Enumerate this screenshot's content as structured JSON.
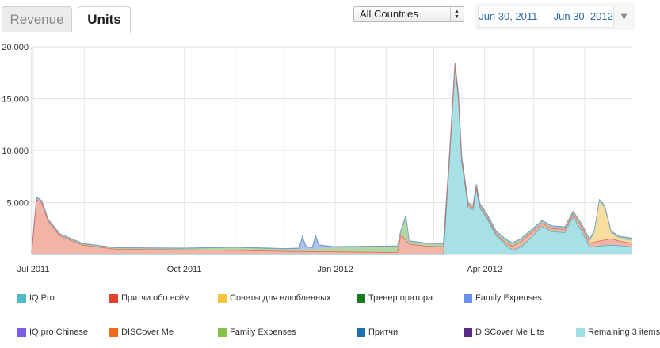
{
  "tabs": [
    {
      "label": "Revenue",
      "active": false
    },
    {
      "label": "Units",
      "active": true
    }
  ],
  "country_select": {
    "value": "All Countries"
  },
  "date_range": {
    "label": "Jun 30, 2011 — Jun 30, 2012"
  },
  "chart_data": {
    "type": "area",
    "stacked": true,
    "ylim": [
      0,
      20000
    ],
    "y_ticks": [
      {
        "value": 5000,
        "label": "5,000"
      },
      {
        "value": 10000,
        "label": "10,000"
      },
      {
        "value": 15000,
        "label": "15,000"
      },
      {
        "value": 20000,
        "label": "20,000"
      }
    ],
    "x_start": "2011-06-30",
    "x_end": "2012-06-30",
    "x_ticks": [
      {
        "date": "2011-07-01",
        "label": "Jul 2011"
      },
      {
        "date": "2011-10-01",
        "label": "Oct 2011"
      },
      {
        "date": "2012-01-01",
        "label": "Jan 2012"
      },
      {
        "date": "2012-04-01",
        "label": "Apr 2012"
      }
    ],
    "gridlines": true,
    "series": [
      {
        "name": "IQ Pro",
        "color": "#4bbcc8"
      },
      {
        "name": "Притчи обо всём",
        "color": "#e2412f"
      },
      {
        "name": "Советы для влюбленных",
        "color": "#f7c53b"
      },
      {
        "name": "Тренер оратора",
        "color": "#187a1b"
      },
      {
        "name": "Family Expenses",
        "color": "#6a8ef0"
      },
      {
        "name": "IQ pro Chinese",
        "color": "#7b5ce6"
      },
      {
        "name": "DISCover Me",
        "color": "#f26a1b"
      },
      {
        "name": "Family Expenses",
        "color": "#86c24a"
      },
      {
        "name": "Притчи",
        "color": "#1f6fb2"
      },
      {
        "name": "DISCover Me Lite",
        "color": "#5a2a8a"
      },
      {
        "name": "Remaining 3 items",
        "color": "#9ee0e8"
      }
    ],
    "stack_layers": [
      {
        "name": "Remaining 3 items",
        "fill": "#a7e1e6",
        "points": [
          [
            "2011-06-30",
            0
          ],
          [
            "2012-03-07",
            0
          ],
          [
            "2012-03-11",
            10000
          ],
          [
            "2012-03-14",
            18000
          ],
          [
            "2012-03-16",
            15000
          ],
          [
            "2012-03-18",
            9000
          ],
          [
            "2012-03-22",
            4500
          ],
          [
            "2012-03-25",
            4300
          ],
          [
            "2012-03-27",
            6300
          ],
          [
            "2012-03-29",
            4500
          ],
          [
            "2012-04-03",
            3300
          ],
          [
            "2012-04-08",
            1800
          ],
          [
            "2012-04-14",
            900
          ],
          [
            "2012-04-18",
            400
          ],
          [
            "2012-04-23",
            700
          ],
          [
            "2012-04-28",
            1400
          ],
          [
            "2012-05-06",
            2700
          ],
          [
            "2012-05-12",
            2200
          ],
          [
            "2012-05-20",
            2100
          ],
          [
            "2012-05-25",
            3600
          ],
          [
            "2012-05-30",
            2300
          ],
          [
            "2012-06-04",
            700
          ],
          [
            "2012-06-10",
            800
          ],
          [
            "2012-06-17",
            900
          ],
          [
            "2012-06-25",
            800
          ],
          [
            "2012-06-30",
            700
          ]
        ]
      },
      {
        "name": "Притчи обо всём",
        "fill": "#f3b4a8",
        "points": [
          [
            "2011-06-30",
            100
          ],
          [
            "2011-07-03",
            5300
          ],
          [
            "2011-07-06",
            5000
          ],
          [
            "2011-07-10",
            3200
          ],
          [
            "2011-07-17",
            1800
          ],
          [
            "2011-07-31",
            900
          ],
          [
            "2011-08-20",
            500
          ],
          [
            "2011-10-01",
            450
          ],
          [
            "2011-11-01",
            400
          ],
          [
            "2011-12-01",
            300
          ],
          [
            "2011-12-31",
            250
          ],
          [
            "2012-01-31",
            200
          ],
          [
            "2012-02-08",
            200
          ],
          [
            "2012-02-10",
            1900
          ],
          [
            "2012-02-15",
            1000
          ],
          [
            "2012-02-25",
            800
          ],
          [
            "2012-03-07",
            750
          ],
          [
            "2012-03-11",
            10200
          ],
          [
            "2012-03-14",
            18150
          ],
          [
            "2012-03-16",
            15200
          ],
          [
            "2012-03-18",
            9200
          ],
          [
            "2012-03-22",
            4700
          ],
          [
            "2012-03-25",
            4500
          ],
          [
            "2012-03-27",
            6500
          ],
          [
            "2012-03-29",
            4700
          ],
          [
            "2012-04-03",
            3500
          ],
          [
            "2012-04-08",
            2000
          ],
          [
            "2012-04-14",
            1100
          ],
          [
            "2012-04-18",
            800
          ],
          [
            "2012-04-23",
            1200
          ],
          [
            "2012-04-28",
            1900
          ],
          [
            "2012-05-06",
            3000
          ],
          [
            "2012-05-12",
            2500
          ],
          [
            "2012-05-20",
            2400
          ],
          [
            "2012-05-25",
            3900
          ],
          [
            "2012-05-30",
            2700
          ],
          [
            "2012-06-04",
            1100
          ],
          [
            "2012-06-10",
            1300
          ],
          [
            "2012-06-17",
            1500
          ],
          [
            "2012-06-25",
            1200
          ],
          [
            "2012-06-30",
            1100
          ]
        ]
      },
      {
        "name": "Советы для влюбленных",
        "fill": "#f8dca0",
        "points": [
          [
            "2011-06-30",
            100
          ],
          [
            "2011-07-03",
            5300
          ],
          [
            "2011-07-06",
            5000
          ],
          [
            "2011-07-10",
            3200
          ],
          [
            "2011-07-17",
            1800
          ],
          [
            "2011-07-31",
            900
          ],
          [
            "2011-08-20",
            500
          ],
          [
            "2011-10-01",
            450
          ],
          [
            "2011-11-01",
            400
          ],
          [
            "2011-12-01",
            300
          ],
          [
            "2011-12-31",
            250
          ],
          [
            "2012-01-31",
            200
          ],
          [
            "2012-02-08",
            200
          ],
          [
            "2012-02-10",
            1900
          ],
          [
            "2012-02-15",
            1000
          ],
          [
            "2012-02-25",
            800
          ],
          [
            "2012-03-07",
            750
          ],
          [
            "2012-03-11",
            10200
          ],
          [
            "2012-03-14",
            18150
          ],
          [
            "2012-03-16",
            15200
          ],
          [
            "2012-03-18",
            9200
          ],
          [
            "2012-03-22",
            4700
          ],
          [
            "2012-03-25",
            4500
          ],
          [
            "2012-03-27",
            6500
          ],
          [
            "2012-03-29",
            4700
          ],
          [
            "2012-04-03",
            3500
          ],
          [
            "2012-04-08",
            2000
          ],
          [
            "2012-04-14",
            1100
          ],
          [
            "2012-04-18",
            800
          ],
          [
            "2012-04-23",
            1200
          ],
          [
            "2012-04-28",
            1900
          ],
          [
            "2012-05-06",
            3000
          ],
          [
            "2012-05-12",
            2500
          ],
          [
            "2012-05-20",
            2400
          ],
          [
            "2012-05-25",
            3900
          ],
          [
            "2012-05-30",
            2700
          ],
          [
            "2012-06-04",
            1200
          ],
          [
            "2012-06-07",
            2100
          ],
          [
            "2012-06-10",
            5000
          ],
          [
            "2012-06-13",
            4500
          ],
          [
            "2012-06-17",
            2000
          ],
          [
            "2012-06-22",
            1500
          ],
          [
            "2012-06-30",
            1300
          ]
        ]
      },
      {
        "name": "Тренер оратора",
        "fill": "#b2d7a0",
        "points": [
          [
            "2011-06-30",
            150
          ],
          [
            "2011-07-03",
            5400
          ],
          [
            "2011-07-06",
            5100
          ],
          [
            "2011-07-10",
            3300
          ],
          [
            "2011-07-17",
            1900
          ],
          [
            "2011-07-31",
            1000
          ],
          [
            "2011-08-20",
            600
          ],
          [
            "2011-10-01",
            550
          ],
          [
            "2011-11-01",
            650
          ],
          [
            "2011-12-01",
            500
          ],
          [
            "2011-12-15",
            500
          ],
          [
            "2011-12-31",
            650
          ],
          [
            "2012-01-31",
            700
          ],
          [
            "2012-02-08",
            700
          ],
          [
            "2012-02-10",
            2200
          ],
          [
            "2012-02-13",
            3500
          ],
          [
            "2012-02-15",
            1200
          ],
          [
            "2012-02-25",
            1000
          ],
          [
            "2012-03-07",
            950
          ],
          [
            "2012-03-11",
            10400
          ],
          [
            "2012-03-14",
            18300
          ],
          [
            "2012-03-16",
            15350
          ],
          [
            "2012-03-18",
            9350
          ],
          [
            "2012-03-22",
            4850
          ],
          [
            "2012-03-25",
            4650
          ],
          [
            "2012-03-27",
            6650
          ],
          [
            "2012-03-29",
            4850
          ],
          [
            "2012-04-03",
            3650
          ],
          [
            "2012-04-08",
            2150
          ],
          [
            "2012-04-14",
            1350
          ],
          [
            "2012-04-18",
            1000
          ],
          [
            "2012-04-23",
            1400
          ],
          [
            "2012-04-28",
            2050
          ],
          [
            "2012-05-06",
            3150
          ],
          [
            "2012-05-12",
            2650
          ],
          [
            "2012-05-20",
            2550
          ],
          [
            "2012-05-25",
            4050
          ],
          [
            "2012-05-30",
            2850
          ],
          [
            "2012-06-04",
            1350
          ],
          [
            "2012-06-07",
            2250
          ],
          [
            "2012-06-10",
            5150
          ],
          [
            "2012-06-13",
            4650
          ],
          [
            "2012-06-17",
            2150
          ],
          [
            "2012-06-22",
            1650
          ],
          [
            "2012-06-30",
            1450
          ]
        ]
      },
      {
        "name": "Family Expenses",
        "fill": "#b0c2f4",
        "points": [
          [
            "2011-06-30",
            150
          ],
          [
            "2011-07-03",
            5500
          ],
          [
            "2011-07-06",
            5200
          ],
          [
            "2011-07-10",
            3400
          ],
          [
            "2011-07-17",
            2000
          ],
          [
            "2011-07-31",
            1050
          ],
          [
            "2011-08-20",
            650
          ],
          [
            "2011-10-01",
            600
          ],
          [
            "2011-11-01",
            700
          ],
          [
            "2011-12-01",
            550
          ],
          [
            "2011-12-10",
            600
          ],
          [
            "2011-12-12",
            1700
          ],
          [
            "2011-12-14",
            800
          ],
          [
            "2011-12-18",
            600
          ],
          [
            "2011-12-20",
            1800
          ],
          [
            "2011-12-22",
            900
          ],
          [
            "2011-12-31",
            750
          ],
          [
            "2012-01-31",
            800
          ],
          [
            "2012-02-08",
            800
          ],
          [
            "2012-02-10",
            2300
          ],
          [
            "2012-02-13",
            3700
          ],
          [
            "2012-02-15",
            1300
          ],
          [
            "2012-02-25",
            1100
          ],
          [
            "2012-03-07",
            1050
          ],
          [
            "2012-03-11",
            10500
          ],
          [
            "2012-03-14",
            18400
          ],
          [
            "2012-03-16",
            15450
          ],
          [
            "2012-03-18",
            9450
          ],
          [
            "2012-03-22",
            4950
          ],
          [
            "2012-03-25",
            4750
          ],
          [
            "2012-03-27",
            6750
          ],
          [
            "2012-03-29",
            4950
          ],
          [
            "2012-04-03",
            3750
          ],
          [
            "2012-04-08",
            2250
          ],
          [
            "2012-04-14",
            1450
          ],
          [
            "2012-04-18",
            1100
          ],
          [
            "2012-04-23",
            1500
          ],
          [
            "2012-04-28",
            2150
          ],
          [
            "2012-05-06",
            3250
          ],
          [
            "2012-05-12",
            2750
          ],
          [
            "2012-05-20",
            2650
          ],
          [
            "2012-05-25",
            4150
          ],
          [
            "2012-05-30",
            2950
          ],
          [
            "2012-06-04",
            1450
          ],
          [
            "2012-06-07",
            2350
          ],
          [
            "2012-06-10",
            5250
          ],
          [
            "2012-06-13",
            4750
          ],
          [
            "2012-06-17",
            2250
          ],
          [
            "2012-06-22",
            1750
          ],
          [
            "2012-06-30",
            1550
          ]
        ]
      }
    ],
    "top_line_color": "#7a9fc2"
  },
  "legend": {
    "rows": [
      [
        {
          "label": "IQ Pro",
          "color": "#4bbcc8"
        },
        {
          "label": "Притчи обо всём",
          "color": "#e2412f"
        },
        {
          "label": "Советы для влюбленных",
          "color": "#f7c53b"
        },
        {
          "label": "Тренер оратора",
          "color": "#187a1b"
        },
        {
          "label": "Family Expenses",
          "color": "#6a8ef0"
        }
      ],
      [
        {
          "label": "IQ pro Chinese",
          "color": "#7b5ce6"
        },
        {
          "label": "DISCover Me",
          "color": "#f26a1b"
        },
        {
          "label": "Family Expenses",
          "color": "#86c24a"
        },
        {
          "label": "Притчи",
          "color": "#1f6fb2"
        },
        {
          "label": "DISCover Me Lite",
          "color": "#5a2a8a"
        },
        {
          "label": "Remaining 3 items",
          "color": "#9ee0e8"
        }
      ]
    ]
  }
}
